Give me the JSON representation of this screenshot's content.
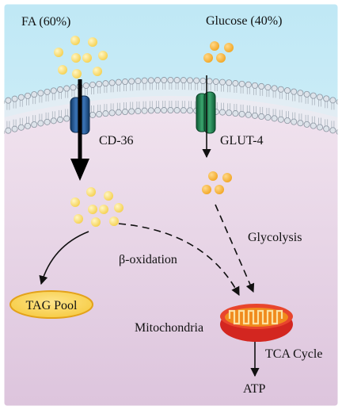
{
  "labels": {
    "fa": "FA (60%)",
    "glucose": "Glucose (40%)",
    "cd36": "CD-36",
    "glut4": "GLUT-4",
    "glycolysis": "Glycolysis",
    "beta_oxidation": "β-oxidation",
    "tag_pool": "TAG Pool",
    "mitochondria": "Mitochondria",
    "tca_cycle": "TCA Cycle",
    "atp": "ATP"
  },
  "colors": {
    "extracellular_top": "#bfe8f5",
    "extracellular_bottom": "#e6f5fb",
    "cytoplasm_top": "#f1e4ef",
    "cytoplasm_bottom": "#dcc3dc",
    "membrane_head": "#dde3ea",
    "membrane_stroke": "#8a94a0",
    "fa_droplet": "#f5d04f",
    "glucose_droplet": "#f2a623",
    "cd36_transporter": "#1f4f86",
    "glut4_transporter": "#1f7a4c",
    "tag_pool_fill": "#f6c83a",
    "mitochondria_outer": "#d32620",
    "mitochondria_inner": "#f08a1c"
  },
  "icons": {
    "cd36": "channel-protein-icon",
    "glut4": "channel-protein-icon",
    "fa": "fatty-acid-droplet-icon",
    "glucose": "glucose-droplet-icon",
    "mitochondria": "mitochondrion-icon"
  }
}
